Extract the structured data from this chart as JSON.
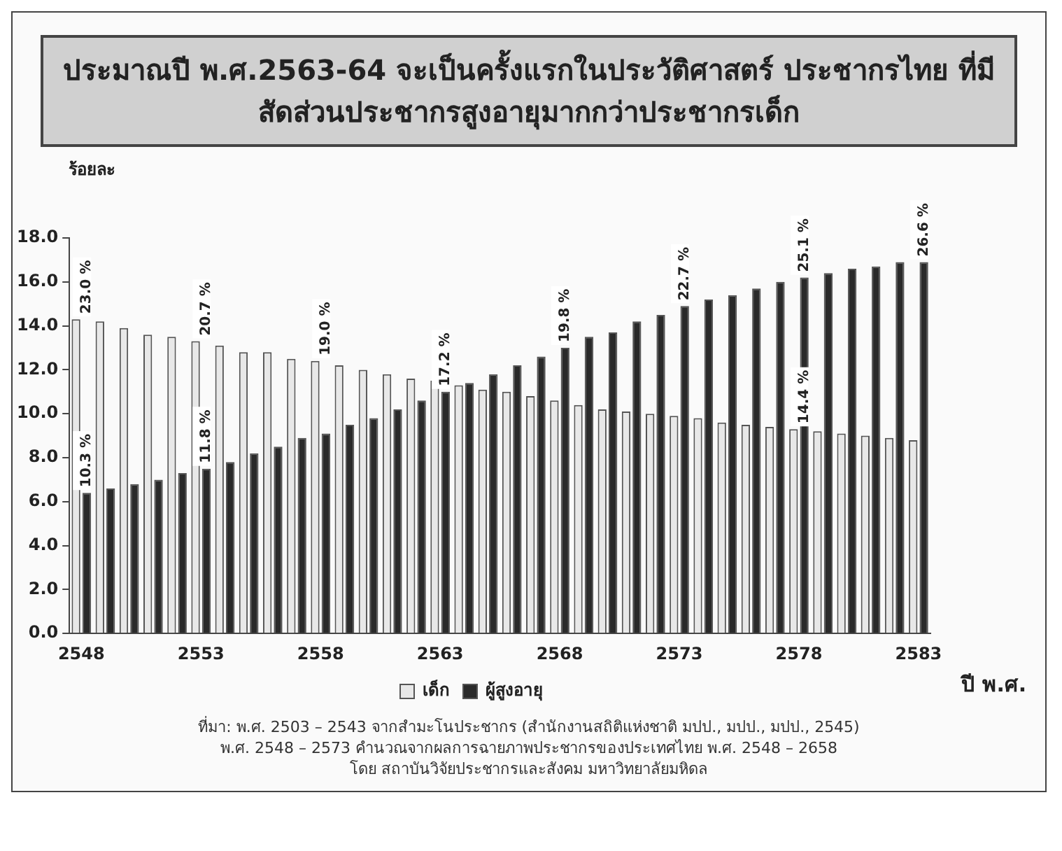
{
  "chart_data": {
    "type": "bar",
    "title": "ประมาณปี พ.ศ.2563-64 จะเป็นครั้งแรกในประวัติศาสตร์ ประชากรไทย ที่มีสัดส่วนประชากรสูงอายุมากกว่าประชากรเด็ก",
    "ylabel": "ร้อยละ",
    "xlabel": "ปี พ.ศ.",
    "categories": [
      "2548",
      null,
      null,
      null,
      null,
      "2553",
      null,
      null,
      null,
      null,
      "2558",
      null,
      null,
      null,
      null,
      "2563",
      null,
      null,
      null,
      null,
      "2568",
      null,
      null,
      null,
      null,
      "2573",
      null,
      null,
      null,
      null,
      "2578",
      null,
      null,
      null,
      null,
      "2583"
    ],
    "series": [
      {
        "name": "เด็ก",
        "color": "#e8e8e8",
        "values": [
          14.3,
          14.2,
          13.9,
          13.6,
          13.5,
          13.3,
          13.1,
          12.8,
          12.8,
          12.5,
          12.4,
          12.2,
          12.0,
          11.8,
          11.6,
          11.5,
          11.3,
          11.1,
          11.0,
          10.8,
          10.6,
          10.4,
          10.2,
          10.1,
          10.0,
          9.9,
          9.8,
          9.6,
          9.5,
          9.4,
          9.3,
          9.2,
          9.1,
          9.0,
          8.9,
          8.8
        ]
      },
      {
        "name": "ผู้สูงอายุ",
        "color": "#2a2a2a",
        "values": [
          6.4,
          6.6,
          6.8,
          7.0,
          7.3,
          7.5,
          7.8,
          8.2,
          8.5,
          8.9,
          9.1,
          9.5,
          9.8,
          10.2,
          10.6,
          11.0,
          11.4,
          11.8,
          12.2,
          12.6,
          13.0,
          13.5,
          13.7,
          14.2,
          14.5,
          14.9,
          15.2,
          15.4,
          15.7,
          16.0,
          16.2,
          16.4,
          16.6,
          16.7,
          16.9,
          16.9
        ]
      }
    ],
    "ylim": [
      0,
      18
    ],
    "yticks": [
      {
        "value": 0,
        "label": "0.0"
      },
      {
        "value": 2,
        "label": "2.0"
      },
      {
        "value": 4,
        "label": "4.0"
      },
      {
        "value": 6,
        "label": "6.0"
      },
      {
        "value": 8,
        "label": "8.0"
      },
      {
        "value": 10,
        "label": "10.0"
      },
      {
        "value": 12,
        "label": "12.0"
      },
      {
        "value": 14,
        "label": "14.0"
      },
      {
        "value": 16,
        "label": "16.0"
      },
      {
        "value": 18,
        "label": "18.0"
      }
    ],
    "grid": false,
    "legend": "bottom",
    "annotations": [
      {
        "text": "23.0 %",
        "x": "2548",
        "y": 14.3
      },
      {
        "text": "10.3 %",
        "x": "2548",
        "y": 6.4
      },
      {
        "text": "20.7 %",
        "x": "2553",
        "y": 13.3
      },
      {
        "text": "11.8 %",
        "x": "2553",
        "y": 7.5
      },
      {
        "text": "19.0 %",
        "x": "2558",
        "y": 12.4
      },
      {
        "text": "17.2 %",
        "x": "2563",
        "y": 11.0
      },
      {
        "text": "19.8 %",
        "x": "2568",
        "y": 13.0
      },
      {
        "text": "22.7 %",
        "x": "2573",
        "y": 14.9
      },
      {
        "text": "25.1 %",
        "x": "2578",
        "y": 16.2
      },
      {
        "text": "14.4 %",
        "x": "2578",
        "y": 9.3
      },
      {
        "text": "26.6 %",
        "x": "2583",
        "y": 16.9
      },
      "ที่มา: พ.ศ. 2503 – 2543 จากสำมะโนประชากร (สำนักงานสถิติแห่งชาติ มปป., มปป., มปป., 2545)",
      "พ.ศ. 2548 – 2573 คำนวณจากผลการฉายภาพประชากรของประเทศไทย พ.ศ. 2548 – 2658",
      "โดย สถาบันวิจัยประชากรและสังคม มหาวิทยาลัยมหิดล"
    ]
  }
}
